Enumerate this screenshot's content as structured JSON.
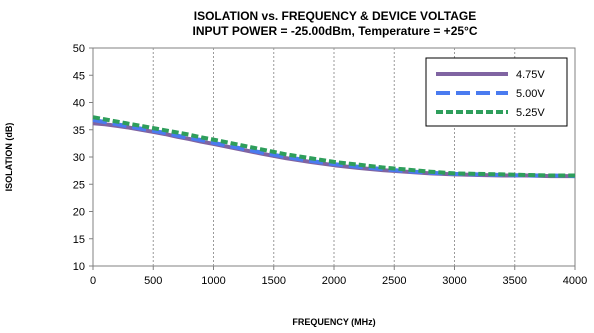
{
  "chart_data": {
    "type": "line",
    "title": "ISOLATION vs. FREQUENCY & DEVICE VOLTAGE",
    "subtitle": "INPUT POWER = -25.00dBm, Temperature = +25°C",
    "xlabel": "FREQUENCY (MHz)",
    "ylabel": "ISOLATION (dB)",
    "xlim": [
      0,
      4000
    ],
    "ylim": [
      10,
      50
    ],
    "xticks": [
      0,
      500,
      1000,
      1500,
      2000,
      2500,
      3000,
      3500,
      4000
    ],
    "yticks": [
      10,
      15,
      20,
      25,
      30,
      35,
      40,
      45,
      50
    ],
    "grid": "vertical-dashed",
    "legend_position": "top-right",
    "x": [
      0,
      100,
      200,
      300,
      400,
      500,
      600,
      700,
      800,
      900,
      1000,
      1200,
      1400,
      1600,
      1800,
      2000,
      2200,
      2400,
      2600,
      2800,
      3000,
      3200,
      3400,
      3600,
      3800,
      4000
    ],
    "series": [
      {
        "name": "4.75V",
        "color": "#8064A2",
        "style": "solid",
        "values": [
          36.2,
          36.0,
          35.7,
          35.4,
          35.0,
          34.6,
          34.2,
          33.7,
          33.3,
          32.8,
          32.4,
          31.5,
          30.6,
          29.8,
          29.1,
          28.5,
          28.0,
          27.6,
          27.3,
          27.0,
          26.8,
          26.7,
          26.6,
          26.6,
          26.5,
          26.5
        ]
      },
      {
        "name": "5.00V",
        "color": "#4A7BF0",
        "style": "dashed",
        "values": [
          36.8,
          36.4,
          36.0,
          35.6,
          35.2,
          34.8,
          34.4,
          33.9,
          33.5,
          33.1,
          32.6,
          31.7,
          30.8,
          30.0,
          29.3,
          28.7,
          28.2,
          27.8,
          27.4,
          27.1,
          26.9,
          26.8,
          26.7,
          26.6,
          26.6,
          26.5
        ]
      },
      {
        "name": "5.25V",
        "color": "#2E9E5B",
        "style": "dotted",
        "values": [
          37.3,
          36.9,
          36.5,
          36.1,
          35.7,
          35.3,
          34.9,
          34.5,
          34.1,
          33.6,
          33.2,
          32.3,
          31.4,
          30.5,
          29.8,
          29.1,
          28.6,
          28.1,
          27.7,
          27.3,
          27.0,
          26.9,
          26.8,
          26.7,
          26.6,
          26.6
        ]
      }
    ]
  }
}
